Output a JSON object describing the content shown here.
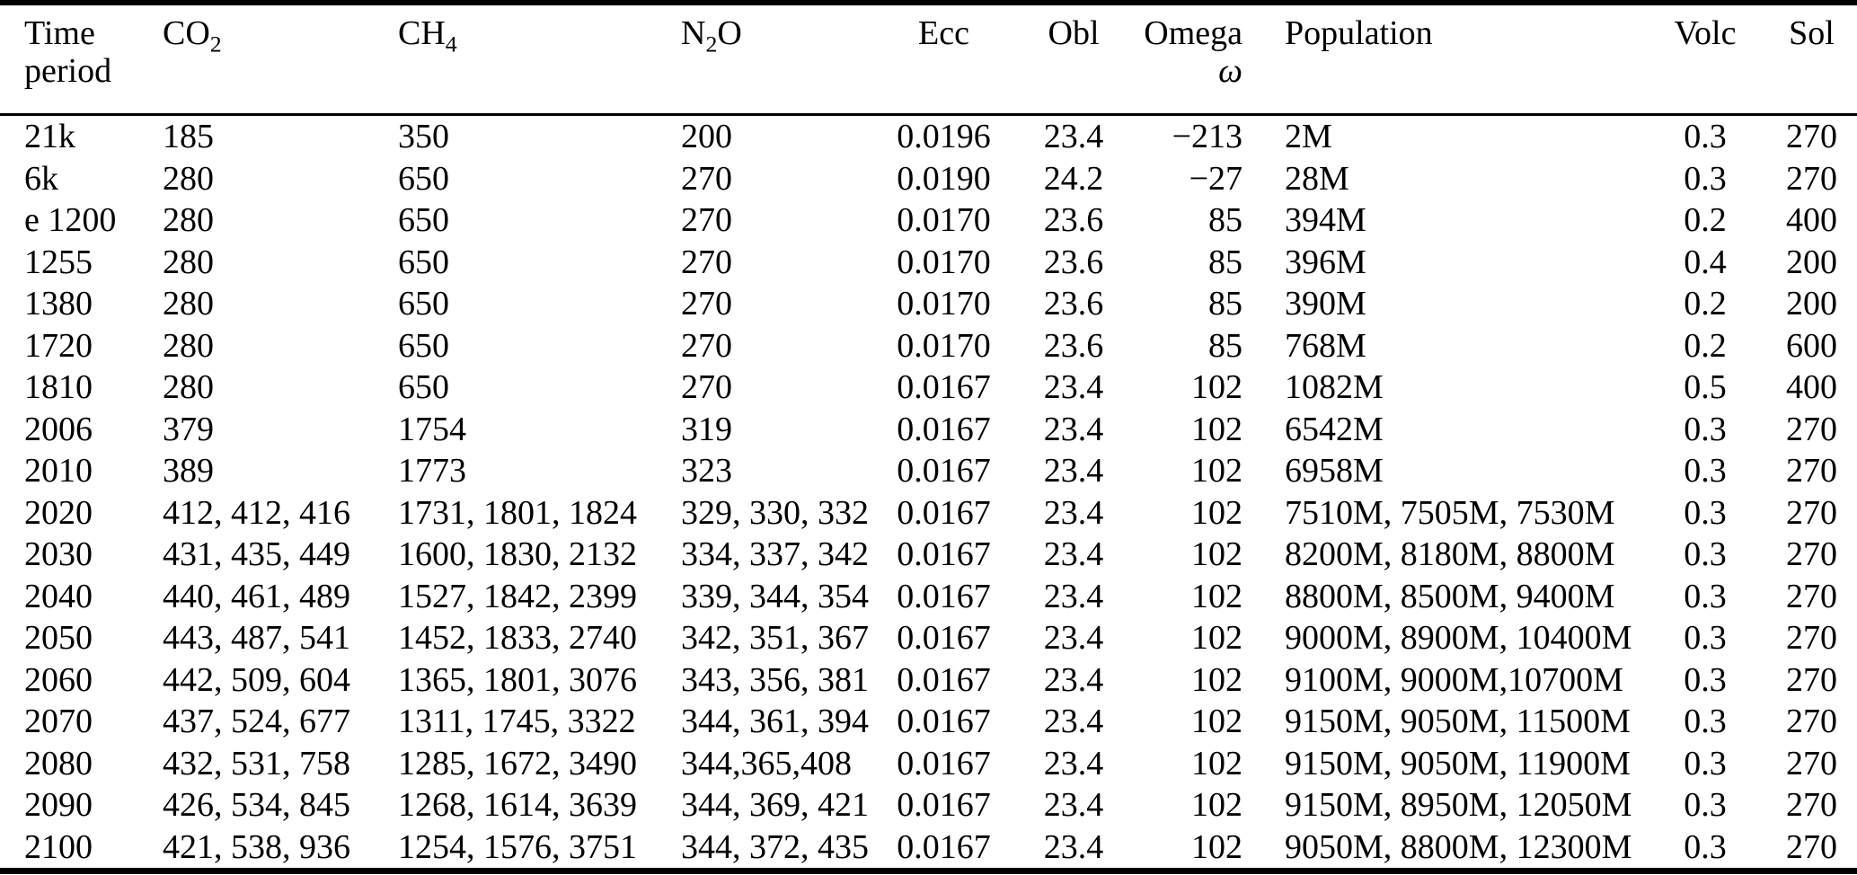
{
  "table": {
    "columns": [
      {
        "id": "time",
        "label_line1": "Time",
        "label_line2": "period"
      },
      {
        "id": "co2",
        "label_pre": "CO",
        "label_sub": "2"
      },
      {
        "id": "ch4",
        "label_pre": "CH",
        "label_sub": "4"
      },
      {
        "id": "n2o",
        "label_pre": "N",
        "label_sub": "2",
        "label_post": "O"
      },
      {
        "id": "ecc",
        "label_line1": "Ecc"
      },
      {
        "id": "obl",
        "label_line1": "Obl"
      },
      {
        "id": "omega",
        "label_line1": "Omega",
        "label_line2": "ω"
      },
      {
        "id": "population",
        "label_line1": "Population"
      },
      {
        "id": "volc",
        "label_line1": "Volc"
      },
      {
        "id": "sol",
        "label_line1": "Sol"
      }
    ],
    "rows": [
      [
        "21k",
        "185",
        "350",
        "200",
        "0.0196",
        "23.4",
        "−213",
        "2M",
        "0.3",
        "270"
      ],
      [
        "6k",
        "280",
        "650",
        "270",
        "0.0190",
        "24.2",
        "−27",
        "28M",
        "0.3",
        "270"
      ],
      [
        "e 1200",
        "280",
        "650",
        "270",
        "0.0170",
        "23.6",
        "85",
        "394M",
        "0.2",
        "400"
      ],
      [
        "1255",
        "280",
        "650",
        "270",
        "0.0170",
        "23.6",
        "85",
        "396M",
        "0.4",
        "200"
      ],
      [
        "1380",
        "280",
        "650",
        "270",
        "0.0170",
        "23.6",
        "85",
        "390M",
        "0.2",
        "200"
      ],
      [
        "1720",
        "280",
        "650",
        "270",
        "0.0170",
        "23.6",
        "85",
        "768M",
        "0.2",
        "600"
      ],
      [
        "1810",
        "280",
        "650",
        "270",
        "0.0167",
        "23.4",
        "102",
        "1082M",
        "0.5",
        "400"
      ],
      [
        "2006",
        "379",
        "1754",
        "319",
        "0.0167",
        "23.4",
        "102",
        "6542M",
        "0.3",
        "270"
      ],
      [
        "2010",
        "389",
        "1773",
        "323",
        "0.0167",
        "23.4",
        "102",
        "6958M",
        "0.3",
        "270"
      ],
      [
        "2020",
        "412, 412, 416",
        "1731, 1801, 1824",
        "329, 330, 332",
        "0.0167",
        "23.4",
        "102",
        "7510M, 7505M, 7530M",
        "0.3",
        "270"
      ],
      [
        "2030",
        "431, 435, 449",
        "1600, 1830, 2132",
        "334, 337, 342",
        "0.0167",
        "23.4",
        "102",
        "8200M, 8180M, 8800M",
        "0.3",
        "270"
      ],
      [
        "2040",
        "440, 461, 489",
        "1527, 1842, 2399",
        "339, 344, 354",
        "0.0167",
        "23.4",
        "102",
        "8800M, 8500M, 9400M",
        "0.3",
        "270"
      ],
      [
        "2050",
        "443, 487, 541",
        "1452, 1833, 2740",
        "342, 351, 367",
        "0.0167",
        "23.4",
        "102",
        "9000M, 8900M, 10400M",
        "0.3",
        "270"
      ],
      [
        "2060",
        "442, 509, 604",
        "1365, 1801, 3076",
        "343, 356, 381",
        "0.0167",
        "23.4",
        "102",
        "9100M, 9000M,10700M",
        "0.3",
        "270"
      ],
      [
        "2070",
        "437, 524, 677",
        "1311, 1745, 3322",
        "344, 361, 394",
        "0.0167",
        "23.4",
        "102",
        "9150M, 9050M, 11500M",
        "0.3",
        "270"
      ],
      [
        "2080",
        "432, 531, 758",
        "1285, 1672, 3490",
        "344,365,408",
        "0.0167",
        "23.4",
        "102",
        "9150M, 9050M, 11900M",
        "0.3",
        "270"
      ],
      [
        "2090",
        "426, 534, 845",
        "1268, 1614, 3639",
        "344, 369, 421",
        "0.0167",
        "23.4",
        "102",
        "9150M, 8950M, 12050M",
        "0.3",
        "270"
      ],
      [
        "2100",
        "421, 538, 936",
        "1254, 1576, 3751",
        "344, 372, 435",
        "0.0167",
        "23.4",
        "102",
        "9050M, 8800M, 12300M",
        "0.3",
        "270"
      ]
    ]
  }
}
